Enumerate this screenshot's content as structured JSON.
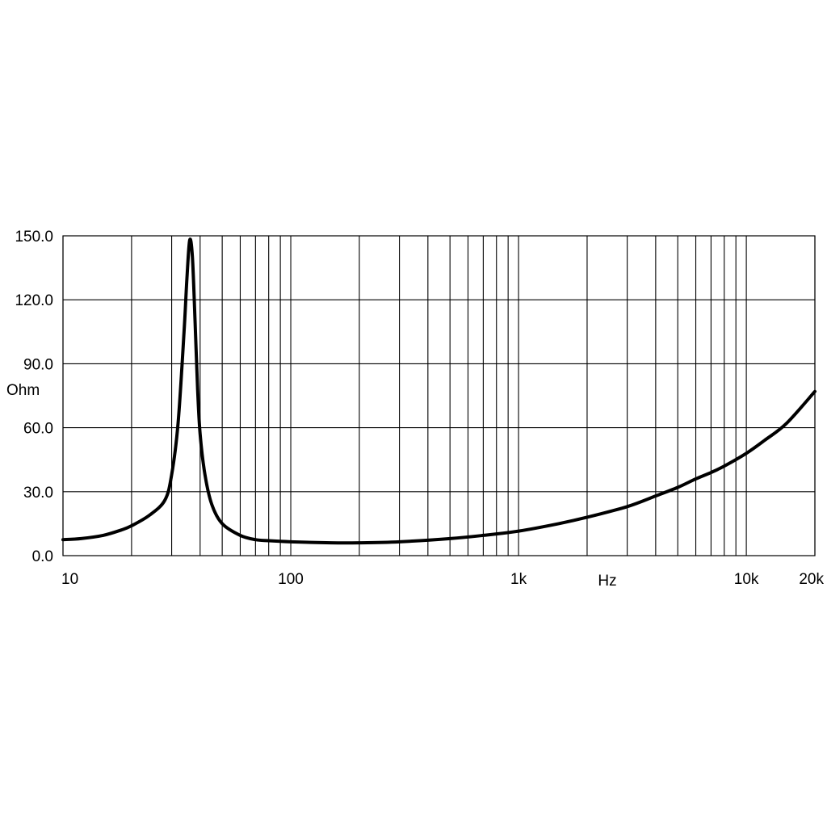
{
  "chart_data": {
    "type": "line",
    "xlabel": "Hz",
    "ylabel": "Ohm",
    "x_scale": "log",
    "xlim": [
      10,
      20000
    ],
    "ylim": [
      0,
      150
    ],
    "x_tick_labels": [
      {
        "value": 10,
        "label": "10"
      },
      {
        "value": 100,
        "label": "100"
      },
      {
        "value": 1000,
        "label": "1k"
      },
      {
        "value": 10000,
        "label": "10k"
      },
      {
        "value": 20000,
        "label": "20k"
      }
    ],
    "y_tick_labels": [
      {
        "value": 0,
        "label": "0.0"
      },
      {
        "value": 30,
        "label": "30.0"
      },
      {
        "value": 60,
        "label": "60.0"
      },
      {
        "value": 90,
        "label": "90.0"
      },
      {
        "value": 120,
        "label": "120.0"
      },
      {
        "value": 150,
        "label": "150.0"
      }
    ],
    "x_gridlines": [
      10,
      20,
      30,
      40,
      50,
      60,
      70,
      80,
      90,
      100,
      200,
      300,
      400,
      500,
      600,
      700,
      800,
      900,
      1000,
      2000,
      3000,
      4000,
      5000,
      6000,
      7000,
      8000,
      9000,
      10000,
      20000
    ],
    "grid": true,
    "series": [
      {
        "x": [
          10,
          12,
          15,
          18,
          20,
          24,
          28,
          30,
          32,
          34,
          35,
          36,
          37,
          38,
          39,
          40,
          42,
          45,
          50,
          60,
          70,
          80,
          100,
          150,
          200,
          300,
          500,
          700,
          1000,
          1500,
          2000,
          3000,
          4000,
          5000,
          6000,
          7000,
          8000,
          10000,
          12000,
          15000,
          20000
        ],
        "y": [
          7.5,
          8,
          9.5,
          12,
          14,
          19,
          26,
          38,
          62,
          105,
          130,
          148,
          140,
          110,
          78,
          57,
          38,
          24,
          15,
          9.5,
          7.5,
          7,
          6.5,
          6,
          6,
          6.5,
          8,
          9.5,
          11.5,
          15,
          18,
          23,
          28,
          32,
          36,
          39,
          42,
          48,
          54,
          62,
          77
        ]
      }
    ]
  }
}
